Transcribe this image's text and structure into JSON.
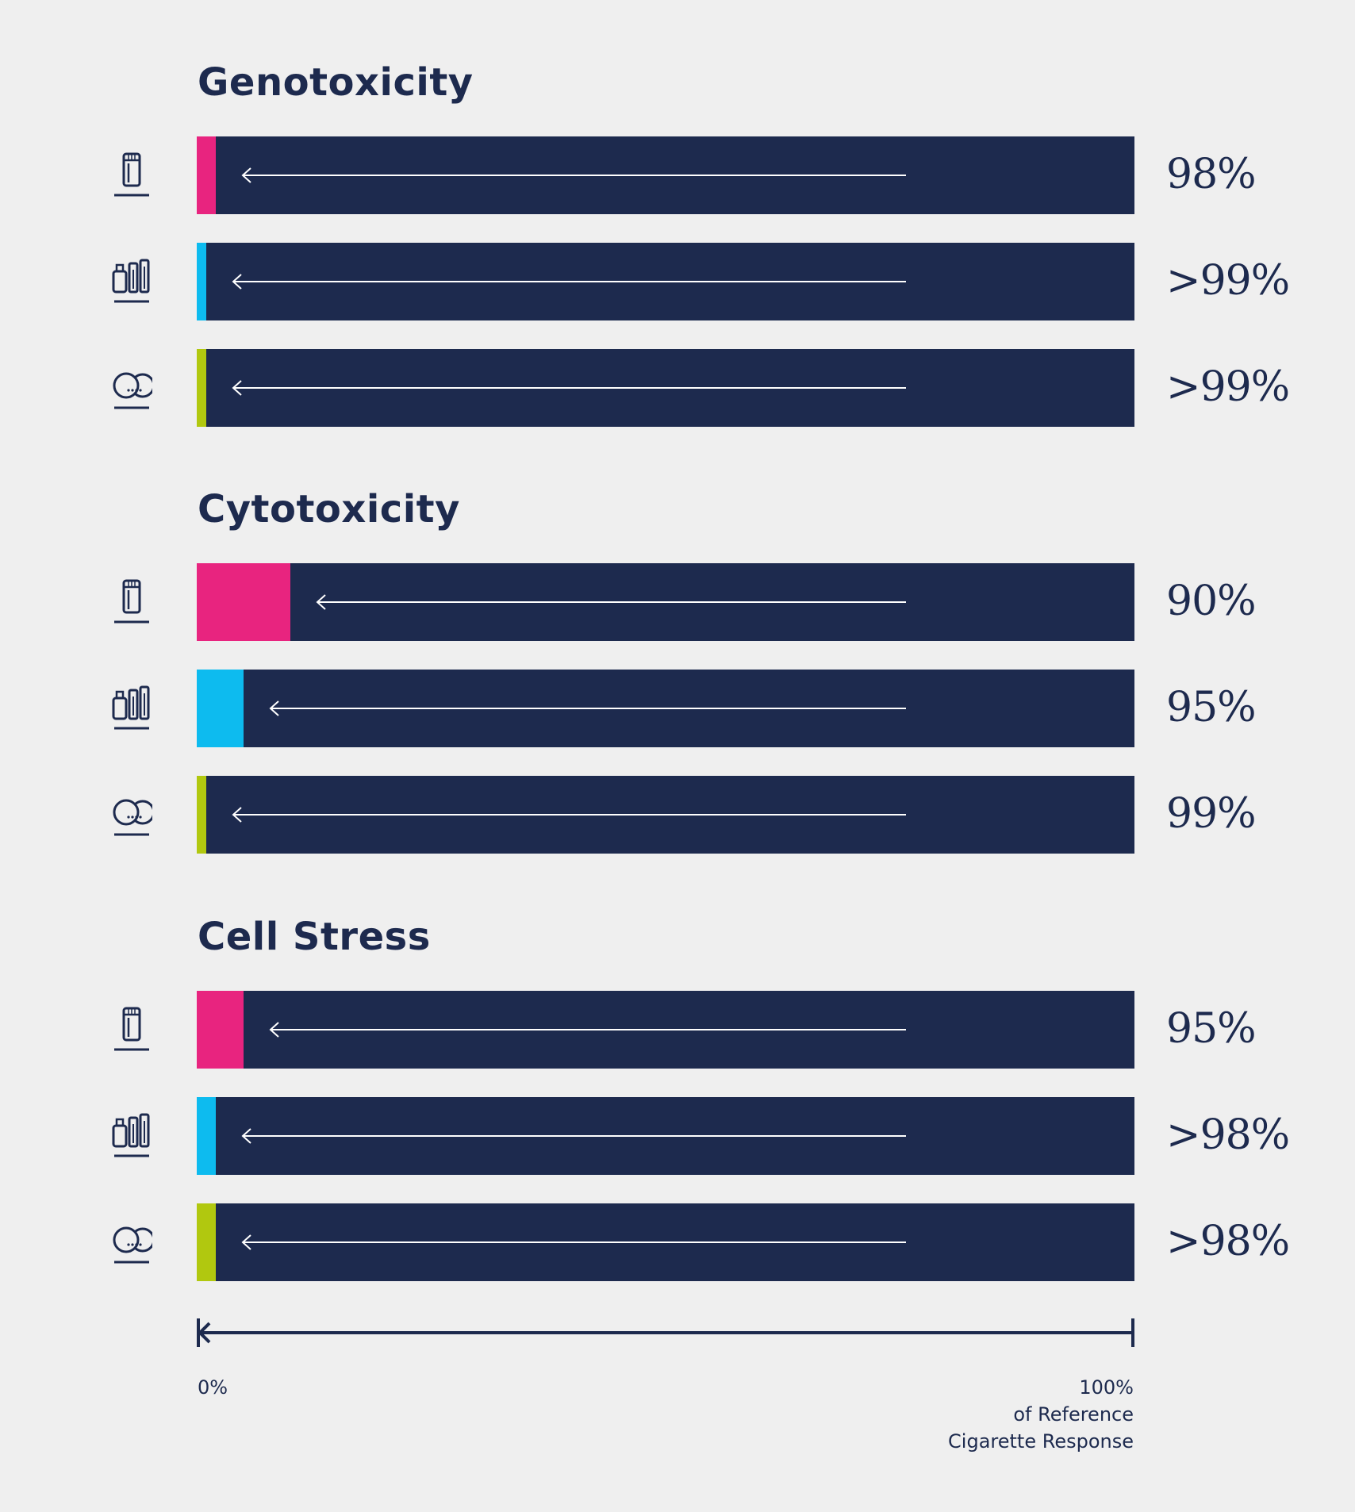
{
  "colors": {
    "background": "#efefef",
    "track": "#1d2a4e",
    "product_1": "#e8247f",
    "product_2": "#0dbbef",
    "product_3": "#b1c80f",
    "text": "#1d2a4e"
  },
  "chart_data": {
    "type": "bar",
    "orientation": "horizontal",
    "xlim": [
      0,
      100
    ],
    "grid": false,
    "legend": "none",
    "products": [
      {
        "icon": "heated-tobacco-device-icon",
        "color": "#e8247f"
      },
      {
        "icon": "vape-devices-icon",
        "color": "#0dbbef"
      },
      {
        "icon": "nicotine-pouch-icon",
        "color": "#b1c80f"
      }
    ],
    "groups": [
      {
        "title": "Genotoxicity",
        "bars": [
          {
            "value": 2,
            "label": "98%"
          },
          {
            "value": 1,
            "label": ">99%"
          },
          {
            "value": 1,
            "label": ">99%"
          }
        ]
      },
      {
        "title": "Cytotoxicity",
        "bars": [
          {
            "value": 10,
            "label": "90%"
          },
          {
            "value": 5,
            "label": "95%"
          },
          {
            "value": 1,
            "label": "99%"
          }
        ]
      },
      {
        "title": "Cell Stress",
        "bars": [
          {
            "value": 5,
            "label": "95%"
          },
          {
            "value": 2,
            "label": ">98%"
          },
          {
            "value": 2,
            "label": ">98%"
          }
        ]
      }
    ],
    "axis": {
      "min_label": "0%",
      "max_label": "100%",
      "max_caption_line1": "of Reference",
      "max_caption_line2": "Cigarette Response"
    }
  }
}
